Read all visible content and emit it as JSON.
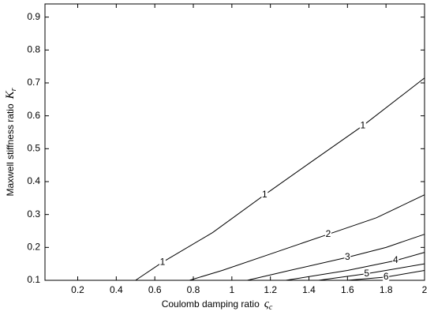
{
  "chart_data": {
    "type": "contour",
    "x_label": "Coulomb damping ratio",
    "x_symbol": "ς",
    "x_symbol_sub": "c",
    "y_label": "Maxwell stiffness ratio",
    "y_symbol": "K",
    "y_symbol_sub": "r",
    "xlim": [
      0.03,
      2
    ],
    "ylim": [
      0.1,
      0.94
    ],
    "xticks": [
      0.2,
      0.4,
      0.6,
      0.8,
      1,
      1.2,
      1.4,
      1.6,
      1.8,
      2
    ],
    "yticks": [
      0.1,
      0.2,
      0.3,
      0.4,
      0.5,
      0.6,
      0.7,
      0.8,
      0.9
    ],
    "series": [
      {
        "name": "1",
        "color": "#000000",
        "x": [
          0.5,
          0.64,
          0.9,
          1.17,
          1.4,
          1.68,
          2
        ],
        "values": [
          0.1,
          0.155,
          0.245,
          0.36,
          0.455,
          0.57,
          0.715
        ]
      },
      {
        "name": "2",
        "color": "#000000",
        "x": [
          0.78,
          0.95,
          1.2,
          1.5,
          1.75,
          2
        ],
        "values": [
          0.1,
          0.13,
          0.18,
          0.24,
          0.29,
          0.36
        ]
      },
      {
        "name": "3",
        "color": "#000000",
        "x": [
          1.08,
          1.3,
          1.6,
          1.8,
          2
        ],
        "values": [
          0.1,
          0.13,
          0.17,
          0.2,
          0.24
        ]
      },
      {
        "name": "4",
        "color": "#000000",
        "x": [
          1.28,
          1.6,
          1.85,
          2
        ],
        "values": [
          0.1,
          0.13,
          0.16,
          0.185
        ]
      },
      {
        "name": "5",
        "color": "#000000",
        "x": [
          1.45,
          1.7,
          2
        ],
        "values": [
          0.1,
          0.12,
          0.15
        ]
      },
      {
        "name": "6",
        "color": "#000000",
        "x": [
          1.6,
          1.8,
          2
        ],
        "values": [
          0.1,
          0.11,
          0.13
        ]
      }
    ]
  }
}
